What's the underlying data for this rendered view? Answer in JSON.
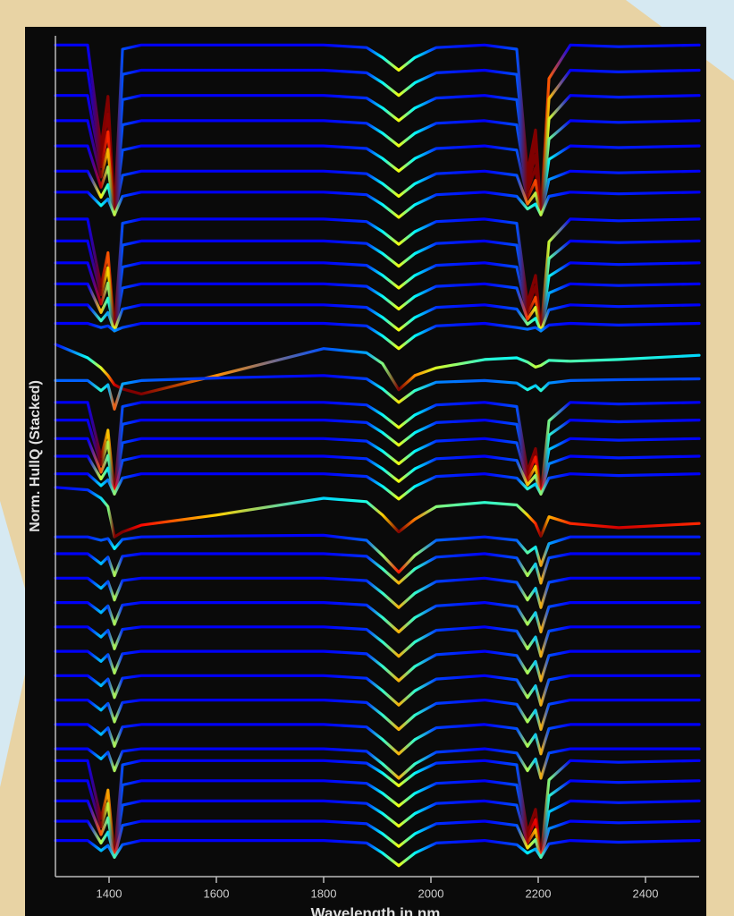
{
  "chart_data": {
    "type": "line",
    "x_label": "Wavelength in nm",
    "y_label": "Norm. HullQ (Stacked)",
    "x": [
      1300,
      1360,
      1385,
      1398,
      1410,
      1425,
      1460,
      1600,
      1800,
      1880,
      1910,
      1940,
      1970,
      2010,
      2100,
      2160,
      2180,
      2195,
      2205,
      2220,
      2260,
      2350,
      2500
    ],
    "xlim": [
      1300,
      2500
    ],
    "xticks": [
      1400,
      1600,
      1800,
      2000,
      2200,
      2400
    ],
    "ylim": [
      0,
      100
    ],
    "colormap": "jet",
    "series": [
      {
        "values": [
          98.9,
          98.9,
          86.8,
          92.8,
          78.7,
          98.4,
          98.9,
          98.9,
          98.9,
          98.6,
          97.4,
          95.9,
          97.4,
          98.6,
          98.9,
          98.4,
          83.7,
          88.8,
          78.7,
          94.9,
          98.9,
          98.7,
          98.9
        ]
      },
      {
        "values": [
          95.9,
          95.9,
          85.6,
          90.7,
          78.7,
          95.4,
          95.9,
          95.9,
          95.9,
          95.6,
          94.4,
          92.9,
          94.4,
          95.6,
          95.9,
          95.4,
          83.0,
          87.3,
          78.7,
          92.5,
          95.9,
          95.7,
          95.9
        ]
      },
      {
        "values": [
          92.9,
          92.9,
          84.4,
          88.6,
          78.7,
          92.4,
          92.9,
          92.9,
          92.9,
          92.6,
          91.4,
          89.9,
          91.4,
          92.6,
          92.9,
          92.4,
          82.2,
          85.8,
          78.7,
          90.1,
          92.9,
          92.7,
          92.9
        ]
      },
      {
        "values": [
          89.9,
          89.9,
          83.2,
          86.5,
          78.7,
          89.4,
          89.9,
          89.9,
          89.9,
          89.6,
          88.4,
          86.9,
          88.4,
          89.6,
          89.9,
          89.4,
          81.5,
          84.3,
          78.7,
          87.7,
          89.9,
          89.7,
          89.9
        ]
      },
      {
        "values": [
          86.9,
          86.9,
          82.0,
          84.4,
          78.7,
          86.4,
          86.9,
          86.9,
          86.9,
          86.6,
          85.4,
          83.9,
          85.4,
          86.6,
          86.9,
          86.4,
          80.7,
          82.8,
          78.7,
          85.3,
          86.9,
          86.7,
          86.9
        ]
      },
      {
        "values": [
          83.9,
          83.9,
          80.8,
          82.3,
          78.7,
          83.4,
          83.9,
          83.9,
          83.9,
          83.6,
          82.4,
          80.9,
          82.4,
          83.6,
          83.9,
          83.4,
          80.0,
          81.3,
          78.7,
          82.9,
          83.9,
          83.7,
          83.9
        ]
      },
      {
        "values": [
          81.4,
          81.4,
          79.8,
          80.6,
          78.7,
          80.9,
          81.4,
          81.4,
          81.4,
          81.1,
          79.9,
          78.4,
          79.9,
          81.1,
          81.4,
          80.9,
          79.4,
          80.0,
          78.7,
          80.9,
          81.4,
          81.2,
          81.4
        ]
      },
      {
        "values": [
          78.2,
          78.2,
          70.2,
          74.2,
          64.9,
          77.7,
          78.2,
          78.2,
          78.2,
          77.9,
          76.7,
          75.2,
          76.7,
          77.9,
          78.2,
          77.7,
          68.2,
          71.5,
          64.9,
          75.5,
          78.2,
          78.0,
          78.2
        ]
      },
      {
        "values": [
          75.6,
          75.6,
          69.2,
          72.4,
          64.9,
          75.1,
          75.6,
          75.6,
          75.6,
          75.3,
          74.1,
          72.6,
          74.1,
          75.3,
          75.6,
          75.1,
          67.6,
          70.2,
          64.9,
          73.5,
          75.6,
          75.4,
          75.6
        ]
      },
      {
        "values": [
          73.0,
          73.0,
          68.1,
          70.6,
          64.9,
          72.5,
          73.0,
          73.0,
          73.0,
          72.7,
          71.5,
          70.0,
          71.5,
          72.7,
          73.0,
          72.5,
          66.9,
          68.9,
          64.9,
          71.4,
          73.0,
          72.8,
          73.0
        ]
      },
      {
        "values": [
          70.5,
          70.5,
          67.1,
          68.8,
          64.9,
          70.0,
          70.5,
          70.5,
          70.5,
          70.2,
          69.0,
          67.5,
          69.0,
          70.2,
          70.5,
          70.0,
          66.3,
          67.7,
          64.9,
          69.4,
          70.5,
          70.3,
          70.5
        ]
      },
      {
        "values": [
          68.0,
          68.0,
          66.1,
          67.1,
          64.9,
          67.5,
          68.0,
          68.0,
          68.0,
          67.7,
          66.5,
          65.0,
          66.5,
          67.7,
          68.0,
          67.5,
          65.7,
          66.4,
          64.9,
          67.4,
          68.0,
          67.8,
          68.0
        ]
      },
      {
        "values": [
          65.8,
          65.8,
          65.3,
          65.5,
          64.9,
          65.3,
          65.8,
          65.8,
          65.8,
          65.5,
          64.3,
          62.8,
          64.3,
          65.5,
          65.8,
          65.3,
          65.1,
          65.3,
          64.9,
          65.6,
          65.8,
          65.6,
          65.8
        ]
      },
      {
        "values": [
          63.3,
          61.7,
          60.5,
          59.6,
          58.5,
          58.0,
          57.4,
          59.6,
          62.8,
          62.3,
          61.0,
          57.9,
          59.6,
          60.5,
          61.5,
          61.7,
          61.2,
          60.6,
          60.8,
          61.4,
          61.3,
          61.5,
          62.0
        ]
      },
      {
        "values": [
          59.0,
          59.0,
          57.8,
          58.5,
          55.6,
          58.6,
          59.0,
          59.3,
          59.6,
          59.2,
          58.0,
          56.4,
          57.8,
          58.8,
          59.0,
          58.7,
          57.9,
          58.4,
          57.8,
          58.7,
          59.0,
          59.1,
          59.2
        ]
      },
      {
        "values": [
          56.4,
          56.4,
          49.9,
          53.1,
          45.5,
          55.9,
          56.4,
          56.4,
          56.4,
          56.1,
          54.9,
          53.4,
          54.9,
          56.1,
          56.4,
          55.9,
          48.2,
          50.9,
          45.5,
          54.2,
          56.4,
          56.2,
          56.4
        ]
      },
      {
        "values": [
          54.3,
          54.3,
          49.0,
          51.7,
          45.5,
          53.8,
          54.3,
          54.3,
          54.3,
          54.0,
          52.8,
          51.3,
          52.8,
          54.0,
          54.3,
          53.8,
          47.7,
          49.9,
          45.5,
          52.5,
          54.3,
          54.1,
          54.3
        ]
      },
      {
        "values": [
          52.1,
          52.1,
          48.1,
          50.1,
          45.5,
          51.6,
          52.1,
          52.1,
          52.1,
          51.8,
          50.6,
          49.1,
          50.6,
          51.8,
          52.1,
          51.6,
          47.1,
          48.8,
          45.5,
          50.8,
          52.1,
          51.9,
          52.1
        ]
      },
      {
        "values": [
          50.0,
          50.0,
          47.3,
          48.6,
          45.5,
          49.5,
          50.0,
          50.0,
          50.0,
          49.7,
          48.5,
          47.0,
          48.5,
          49.7,
          50.0,
          49.5,
          46.6,
          47.7,
          45.5,
          49.1,
          50.0,
          49.8,
          50.0
        ]
      },
      {
        "values": [
          47.9,
          47.9,
          46.5,
          47.2,
          45.5,
          47.4,
          47.9,
          47.9,
          47.9,
          47.6,
          46.4,
          44.9,
          46.4,
          47.6,
          47.9,
          47.4,
          46.1,
          46.7,
          45.5,
          47.4,
          47.9,
          47.7,
          47.9
        ]
      },
      {
        "values": [
          46.3,
          46.0,
          45.0,
          44.0,
          40.4,
          41.0,
          41.8,
          43.0,
          45.0,
          44.6,
          43.0,
          41.0,
          42.5,
          44.0,
          44.5,
          44.2,
          43.0,
          42.0,
          40.5,
          42.8,
          42.0,
          41.5,
          42.0
        ]
      },
      {
        "values": [
          40.4,
          40.4,
          40.0,
          40.2,
          39.0,
          40.1,
          40.4,
          40.5,
          40.6,
          40.0,
          38.2,
          36.2,
          38.2,
          40.0,
          40.4,
          40.0,
          38.5,
          39.2,
          37.0,
          39.6,
          40.4,
          40.4,
          40.4
        ]
      },
      {
        "values": [
          38.4,
          38.4,
          37.2,
          38.0,
          35.8,
          38.1,
          38.4,
          38.4,
          38.4,
          38.1,
          36.6,
          34.9,
          36.6,
          38.0,
          38.4,
          37.9,
          35.8,
          37.2,
          34.9,
          37.9,
          38.4,
          38.4,
          38.4
        ]
      },
      {
        "values": [
          35.5,
          35.5,
          34.3,
          35.1,
          32.9,
          35.2,
          35.5,
          35.5,
          35.5,
          35.2,
          33.7,
          32.0,
          33.7,
          35.1,
          35.5,
          35.0,
          32.9,
          34.3,
          32.0,
          35.0,
          35.5,
          35.5,
          35.5
        ]
      },
      {
        "values": [
          32.6,
          32.6,
          31.4,
          32.2,
          30.0,
          32.3,
          32.6,
          32.6,
          32.6,
          32.3,
          30.8,
          29.1,
          30.8,
          32.2,
          32.6,
          32.1,
          30.0,
          31.4,
          29.1,
          32.1,
          32.6,
          32.6,
          32.6
        ]
      },
      {
        "values": [
          29.7,
          29.7,
          28.5,
          29.3,
          27.1,
          29.4,
          29.7,
          29.7,
          29.7,
          29.4,
          27.9,
          26.2,
          27.9,
          29.3,
          29.7,
          29.2,
          27.1,
          28.5,
          26.2,
          29.2,
          29.7,
          29.7,
          29.7
        ]
      },
      {
        "values": [
          26.8,
          26.8,
          25.6,
          26.4,
          24.2,
          26.5,
          26.8,
          26.8,
          26.8,
          26.5,
          25.0,
          23.3,
          25.0,
          26.4,
          26.8,
          26.3,
          24.2,
          25.6,
          23.3,
          26.3,
          26.8,
          26.8,
          26.8
        ]
      },
      {
        "values": [
          23.9,
          23.9,
          22.7,
          23.5,
          21.3,
          23.6,
          23.9,
          23.9,
          23.9,
          23.6,
          22.1,
          20.4,
          22.1,
          23.5,
          23.9,
          23.4,
          21.3,
          22.7,
          20.4,
          23.4,
          23.9,
          23.9,
          23.9
        ]
      },
      {
        "values": [
          21.0,
          21.0,
          19.8,
          20.6,
          18.4,
          20.7,
          21.0,
          21.0,
          21.0,
          20.7,
          19.2,
          17.5,
          19.2,
          20.6,
          21.0,
          20.5,
          18.4,
          19.8,
          17.5,
          20.5,
          21.0,
          21.0,
          21.0
        ]
      },
      {
        "values": [
          18.1,
          18.1,
          16.9,
          17.7,
          15.5,
          17.8,
          18.1,
          18.1,
          18.1,
          17.8,
          16.3,
          14.6,
          16.3,
          17.7,
          18.1,
          17.6,
          15.5,
          16.9,
          14.6,
          17.6,
          18.1,
          18.1,
          18.1
        ]
      },
      {
        "values": [
          15.2,
          15.2,
          14.0,
          14.8,
          12.6,
          14.9,
          15.2,
          15.2,
          15.2,
          14.9,
          13.4,
          11.7,
          13.4,
          14.8,
          15.2,
          14.7,
          12.6,
          14.0,
          11.7,
          14.7,
          15.2,
          15.2,
          15.2
        ]
      },
      {
        "values": [
          13.8,
          13.8,
          6.9,
          10.3,
          2.3,
          13.3,
          13.8,
          13.8,
          13.8,
          13.5,
          12.3,
          10.8,
          12.3,
          13.5,
          13.8,
          13.3,
          5.2,
          8.0,
          2.3,
          11.5,
          13.8,
          13.6,
          13.8
        ]
      },
      {
        "values": [
          11.4,
          11.4,
          5.9,
          8.7,
          2.3,
          10.9,
          11.4,
          11.4,
          11.4,
          11.1,
          9.9,
          8.4,
          9.9,
          11.1,
          11.4,
          10.9,
          4.6,
          6.8,
          2.3,
          9.6,
          11.4,
          11.2,
          11.4
        ]
      },
      {
        "values": [
          9.0,
          9.0,
          5.0,
          7.0,
          2.3,
          8.5,
          9.0,
          9.0,
          9.0,
          8.7,
          7.5,
          6.0,
          7.5,
          8.7,
          9.0,
          8.5,
          4.0,
          5.6,
          2.3,
          7.7,
          9.0,
          8.8,
          9.0
        ]
      },
      {
        "values": [
          6.6,
          6.6,
          4.0,
          5.3,
          2.3,
          6.1,
          6.6,
          6.6,
          6.6,
          6.3,
          5.1,
          3.6,
          5.1,
          6.3,
          6.6,
          6.1,
          3.4,
          4.4,
          2.3,
          5.7,
          6.6,
          6.4,
          6.6
        ]
      },
      {
        "values": [
          4.3,
          4.3,
          3.1,
          3.7,
          2.3,
          3.8,
          4.3,
          4.3,
          4.3,
          4.0,
          2.8,
          1.3,
          2.8,
          4.0,
          4.3,
          3.8,
          2.8,
          3.3,
          2.3,
          3.9,
          4.3,
          4.1,
          4.3
        ]
      }
    ]
  }
}
